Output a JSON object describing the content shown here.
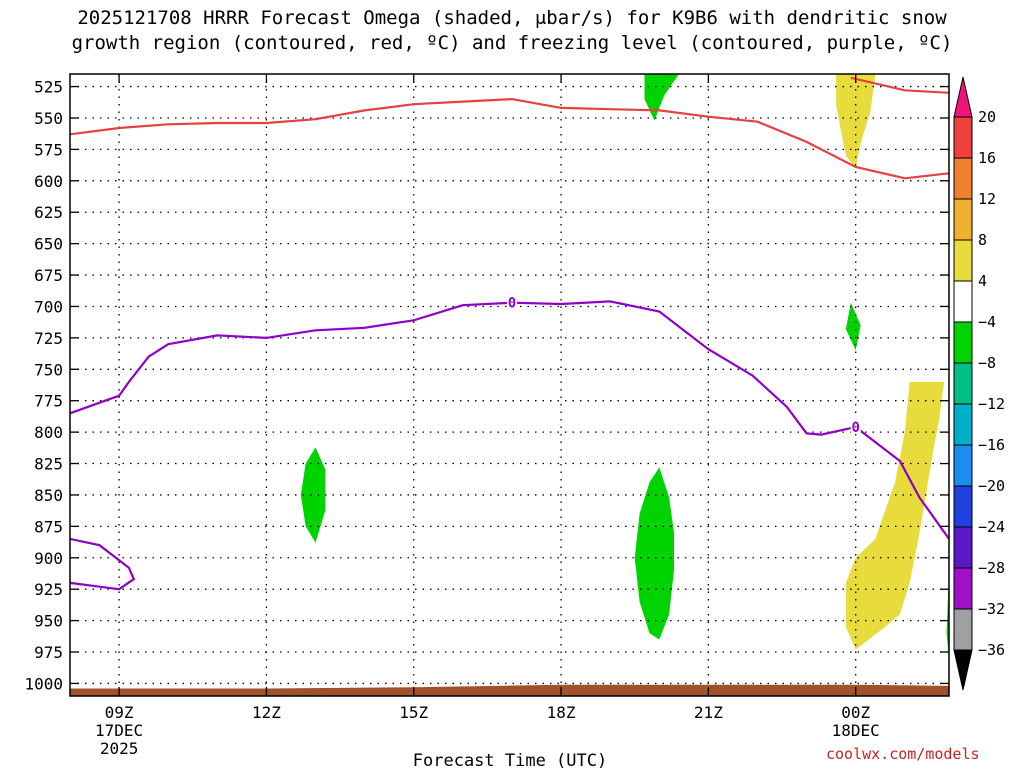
{
  "title_lines": [
    "2025121708 HRRR Forecast Omega (shaded, μbar/s) for K9B6 with dendritic snow",
    "growth region (contoured, red, ºC) and freezing level (contoured, purple, ºC)"
  ],
  "credit": "coolwx.com/models",
  "chart_data": {
    "type": "contour",
    "xlabel": "Forecast Time (UTC)",
    "ylabel": "",
    "x_axis": {
      "unit": "forecast hour",
      "range": [
        8,
        25.9
      ],
      "ticks": [
        {
          "hour": 9,
          "label": "09Z",
          "sub": [
            "17DEC",
            "2025"
          ]
        },
        {
          "hour": 12,
          "label": "12Z",
          "sub": []
        },
        {
          "hour": 15,
          "label": "15Z",
          "sub": []
        },
        {
          "hour": 18,
          "label": "18Z",
          "sub": []
        },
        {
          "hour": 21,
          "label": "21Z",
          "sub": []
        },
        {
          "hour": 24,
          "label": "00Z",
          "sub": [
            "18DEC"
          ]
        }
      ]
    },
    "y_axis": {
      "unit": "hPa",
      "reversed": true,
      "range": [
        1010,
        515
      ],
      "ticks": [
        525,
        550,
        575,
        600,
        625,
        650,
        675,
        700,
        725,
        750,
        775,
        800,
        825,
        850,
        875,
        900,
        925,
        950,
        975,
        1000
      ]
    },
    "grid": true,
    "colorbar": {
      "unit": "μbar/s",
      "labels": [
        "20",
        "16",
        "12",
        "8",
        "4",
        "−4",
        "−8",
        "−12",
        "−16",
        "−20",
        "−24",
        "−28",
        "−32",
        "−36"
      ],
      "colors": [
        "#f0147a",
        "#f04040",
        "#f08030",
        "#f0b030",
        "#e8dc3c",
        "#ffffff",
        "#00d400",
        "#00c088",
        "#00b0c8",
        "#1c8cf0",
        "#2040e0",
        "#5c18c8",
        "#a010c8",
        "#a0a0a0",
        "#000000"
      ]
    },
    "freezing_level": {
      "name": "0",
      "color": "#9000c8",
      "label_points": [
        [
          17.0,
          697
        ],
        [
          24.0,
          796
        ]
      ],
      "main": [
        [
          8,
          785
        ],
        [
          9,
          771
        ],
        [
          9.2,
          760
        ],
        [
          9.6,
          740
        ],
        [
          10.0,
          730
        ],
        [
          11,
          723
        ],
        [
          12,
          725
        ],
        [
          13,
          719
        ],
        [
          14,
          717
        ],
        [
          15,
          711
        ],
        [
          16,
          699
        ],
        [
          17,
          697
        ],
        [
          18,
          698
        ],
        [
          19,
          696
        ],
        [
          20,
          704
        ],
        [
          20.6,
          722
        ],
        [
          21,
          734
        ],
        [
          21.9,
          755
        ],
        [
          22.6,
          780
        ],
        [
          23.0,
          801
        ],
        [
          23.3,
          802
        ],
        [
          24.0,
          796
        ],
        [
          24.9,
          823
        ],
        [
          25.3,
          852
        ],
        [
          25.9,
          885
        ]
      ],
      "loop": [
        [
          8,
          885
        ],
        [
          8.6,
          890
        ],
        [
          9.0,
          902
        ],
        [
          9.2,
          908
        ],
        [
          9.3,
          917
        ],
        [
          9.0,
          925
        ],
        [
          8.6,
          923
        ],
        [
          8,
          920
        ]
      ]
    },
    "dgz_contour": {
      "color": "#e84040",
      "upper": [
        [
          23.9,
          518
        ],
        [
          25.0,
          528
        ],
        [
          25.9,
          530
        ]
      ],
      "lower": [
        [
          8,
          563
        ],
        [
          9,
          558
        ],
        [
          10,
          555
        ],
        [
          11,
          554
        ],
        [
          12,
          554
        ],
        [
          13,
          551
        ],
        [
          14,
          544
        ],
        [
          15,
          539
        ],
        [
          16,
          537
        ],
        [
          17,
          535
        ],
        [
          18,
          542
        ],
        [
          19,
          543
        ],
        [
          20,
          544
        ],
        [
          21,
          549
        ],
        [
          22,
          553
        ],
        [
          23,
          569
        ],
        [
          24,
          589
        ],
        [
          25,
          598
        ],
        [
          25.9,
          594
        ]
      ]
    },
    "omega_fields": [
      {
        "color": "#00d400",
        "value": "-4 to -8",
        "points": [
          [
            19.7,
            515
          ],
          [
            20.4,
            515
          ],
          [
            20.1,
            532
          ],
          [
            19.9,
            552
          ],
          [
            19.7,
            535
          ]
        ]
      },
      {
        "color": "#e8dc3c",
        "value": "4 to 8",
        "points": [
          [
            23.6,
            515
          ],
          [
            24.4,
            515
          ],
          [
            24.3,
            545
          ],
          [
            24.1,
            570
          ],
          [
            24.0,
            590
          ],
          [
            23.8,
            580
          ],
          [
            23.6,
            540
          ]
        ]
      },
      {
        "color": "#00d400",
        "value": "-4 to -8",
        "points": [
          [
            23.9,
            697
          ],
          [
            24.1,
            715
          ],
          [
            24.0,
            735
          ],
          [
            23.8,
            718
          ]
        ]
      },
      {
        "color": "#e8dc3c",
        "value": "4 to 8",
        "points": [
          [
            25.1,
            760
          ],
          [
            25.8,
            760
          ],
          [
            25.7,
            790
          ],
          [
            25.6,
            810
          ],
          [
            25.3,
            880
          ],
          [
            25.1,
            920
          ],
          [
            24.9,
            945
          ],
          [
            24.6,
            955
          ],
          [
            24.2,
            967
          ],
          [
            24.0,
            973
          ],
          [
            23.8,
            955
          ],
          [
            23.8,
            920
          ],
          [
            24.0,
            900
          ],
          [
            24.4,
            885
          ],
          [
            24.8,
            840
          ],
          [
            25.0,
            800
          ]
        ]
      },
      {
        "color": "#00d400",
        "value": "-4 to -8",
        "points": [
          [
            13.0,
            812
          ],
          [
            13.2,
            830
          ],
          [
            13.2,
            862
          ],
          [
            13.0,
            888
          ],
          [
            12.8,
            875
          ],
          [
            12.7,
            850
          ],
          [
            12.8,
            825
          ]
        ]
      },
      {
        "color": "#00d400",
        "value": "-4 to -8",
        "points": [
          [
            20.0,
            828
          ],
          [
            20.2,
            852
          ],
          [
            20.3,
            880
          ],
          [
            20.3,
            910
          ],
          [
            20.2,
            945
          ],
          [
            20.0,
            965
          ],
          [
            19.8,
            960
          ],
          [
            19.6,
            935
          ],
          [
            19.5,
            900
          ],
          [
            19.6,
            865
          ],
          [
            19.8,
            840
          ]
        ]
      },
      {
        "color": "#00d400",
        "value": "-4 to -8",
        "points": [
          [
            25.9,
            912
          ],
          [
            25.9,
            980
          ],
          [
            25.85,
            960
          ]
        ]
      }
    ],
    "terrain": {
      "color": "#a0522d",
      "top": [
        [
          8,
          1004
        ],
        [
          12,
          1004
        ],
        [
          15,
          1003
        ],
        [
          18,
          1001
        ],
        [
          21,
          1001
        ],
        [
          24,
          1001
        ],
        [
          25.9,
          1002
        ]
      ],
      "bottom": 1010
    }
  }
}
